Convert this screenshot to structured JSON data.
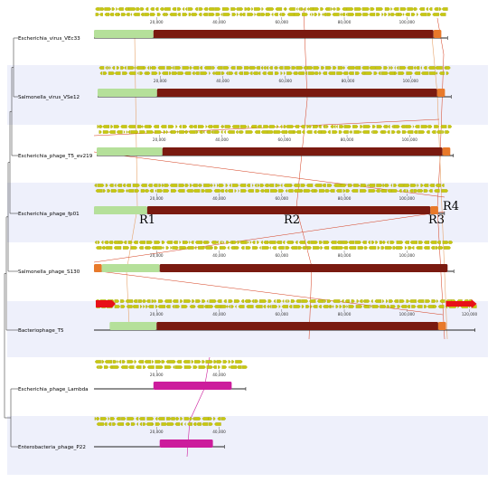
{
  "genomes": [
    {
      "name": "Escherichia_virus_VEc33",
      "length": 113000,
      "ticks": [
        20000,
        40000,
        60000,
        80000,
        100000
      ],
      "blocks": [
        {
          "color": "#b5e09a",
          "start": 0,
          "end": 19000
        },
        {
          "color": "#7a1a10",
          "start": 19000,
          "end": 108500
        },
        {
          "color": "#e8792a",
          "start": 108500,
          "end": 111000
        }
      ]
    },
    {
      "name": "Salmonella_virus_VSe12",
      "length": 113000,
      "ticks": [
        20000,
        40000,
        60000,
        80000,
        100000
      ],
      "blocks": [
        {
          "color": "#b5e09a",
          "start": 0,
          "end": 19000
        },
        {
          "color": "#7a1a10",
          "start": 19000,
          "end": 108500
        },
        {
          "color": "#e8792a",
          "start": 108500,
          "end": 111000
        }
      ]
    },
    {
      "name": "Escherichia_phage_T5_ev219",
      "length": 114000,
      "ticks": [
        20000,
        40000,
        60000,
        80000,
        100000
      ],
      "blocks": [
        {
          "color": "#b5e09a",
          "start": 0,
          "end": 21000
        },
        {
          "color": "#7a1a10",
          "start": 21000,
          "end": 110500
        },
        {
          "color": "#e8792a",
          "start": 110500,
          "end": 113000
        }
      ]
    },
    {
      "name": "Escherichia_phage_fp01",
      "length": 112000,
      "ticks": [
        20000,
        40000,
        60000,
        80000,
        100000
      ],
      "blocks": [
        {
          "color": "#b5e09a",
          "start": 0,
          "end": 17000
        },
        {
          "color": "#7a1a10",
          "start": 17000,
          "end": 107500
        },
        {
          "color": "#e8792a",
          "start": 107500,
          "end": 110000
        }
      ]
    },
    {
      "name": "Salmonella_phage_S130",
      "length": 115000,
      "ticks": [
        20000,
        40000,
        60000,
        80000,
        100000
      ],
      "blocks": [
        {
          "color": "#e8792a",
          "start": 0,
          "end": 2500
        },
        {
          "color": "#b5e09a",
          "start": 2500,
          "end": 21000
        },
        {
          "color": "#7a1a10",
          "start": 21000,
          "end": 113000
        }
      ]
    },
    {
      "name": "Bacteriophage_T5",
      "length": 121750,
      "ticks": [
        20000,
        40000,
        60000,
        80000,
        100000,
        120000
      ],
      "blocks": [
        {
          "color": "#b5e09a",
          "start": 5000,
          "end": 20000
        },
        {
          "color": "#7a1a10",
          "start": 20000,
          "end": 110000
        },
        {
          "color": "#e8792a",
          "start": 110000,
          "end": 112500
        }
      ]
    },
    {
      "name": "Escherichia_phage_Lambda",
      "length": 48500,
      "ticks": [
        20000,
        40000
      ],
      "blocks": [
        {
          "color": "#cc1c9c",
          "start": 19000,
          "end": 44000
        }
      ]
    },
    {
      "name": "Enterobacteria_phage_P22",
      "length": 41700,
      "ticks": [
        20000,
        40000
      ],
      "blocks": [
        {
          "color": "#cc1c9c",
          "start": 21000,
          "end": 38000
        }
      ]
    }
  ],
  "region_labels": [
    "R1",
    "R2",
    "R3",
    "R4"
  ],
  "colors": {
    "gene": "#c8c810",
    "gene_dark": "#9a9a00",
    "band": "#eef0fb",
    "link": "#d43b1a",
    "link_light": "#e6a46c",
    "tree": "#444444",
    "special_gene": "#e81018"
  }
}
